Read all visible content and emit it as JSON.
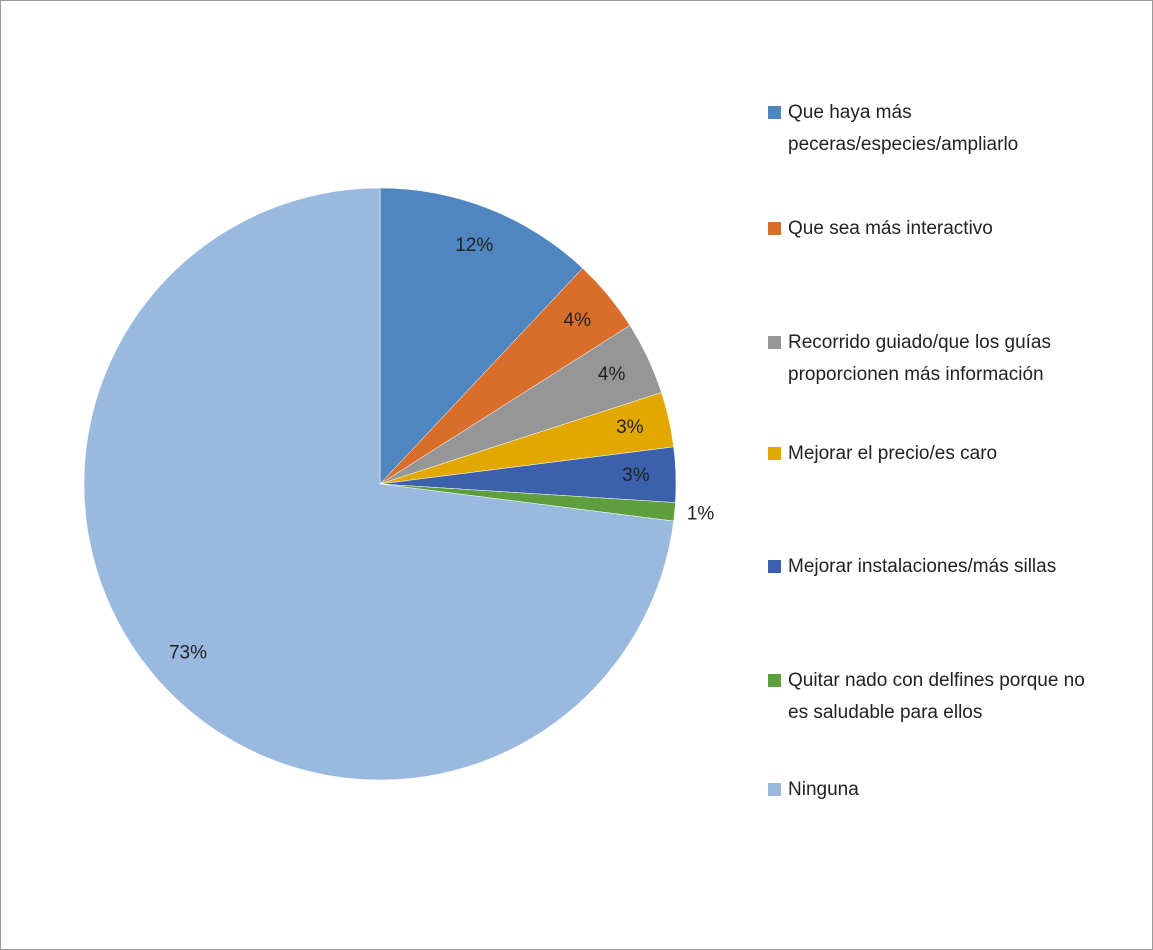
{
  "chart_data": {
    "type": "pie",
    "categories": [
      "Que haya más peceras/especies/ampliarlo",
      "Que sea más interactivo",
      "Recorrido guiado/que los guías proporcionen más información",
      "Mejorar el precio/es caro",
      "Mejorar instalaciones/más sillas",
      "Quitar nado con delfines porque no es saludable para ellos",
      "Ninguna"
    ],
    "values": [
      12,
      4,
      4,
      3,
      3,
      1,
      73
    ],
    "value_labels": [
      "12%",
      "4%",
      "4%",
      "3%",
      "3%",
      "1%",
      "73%"
    ],
    "colors": [
      "#4f86bf",
      "#d86e2a",
      "#969696",
      "#e3a800",
      "#3b61ad",
      "#5e9e3e",
      "#9ab9df"
    ],
    "legend": "right"
  }
}
